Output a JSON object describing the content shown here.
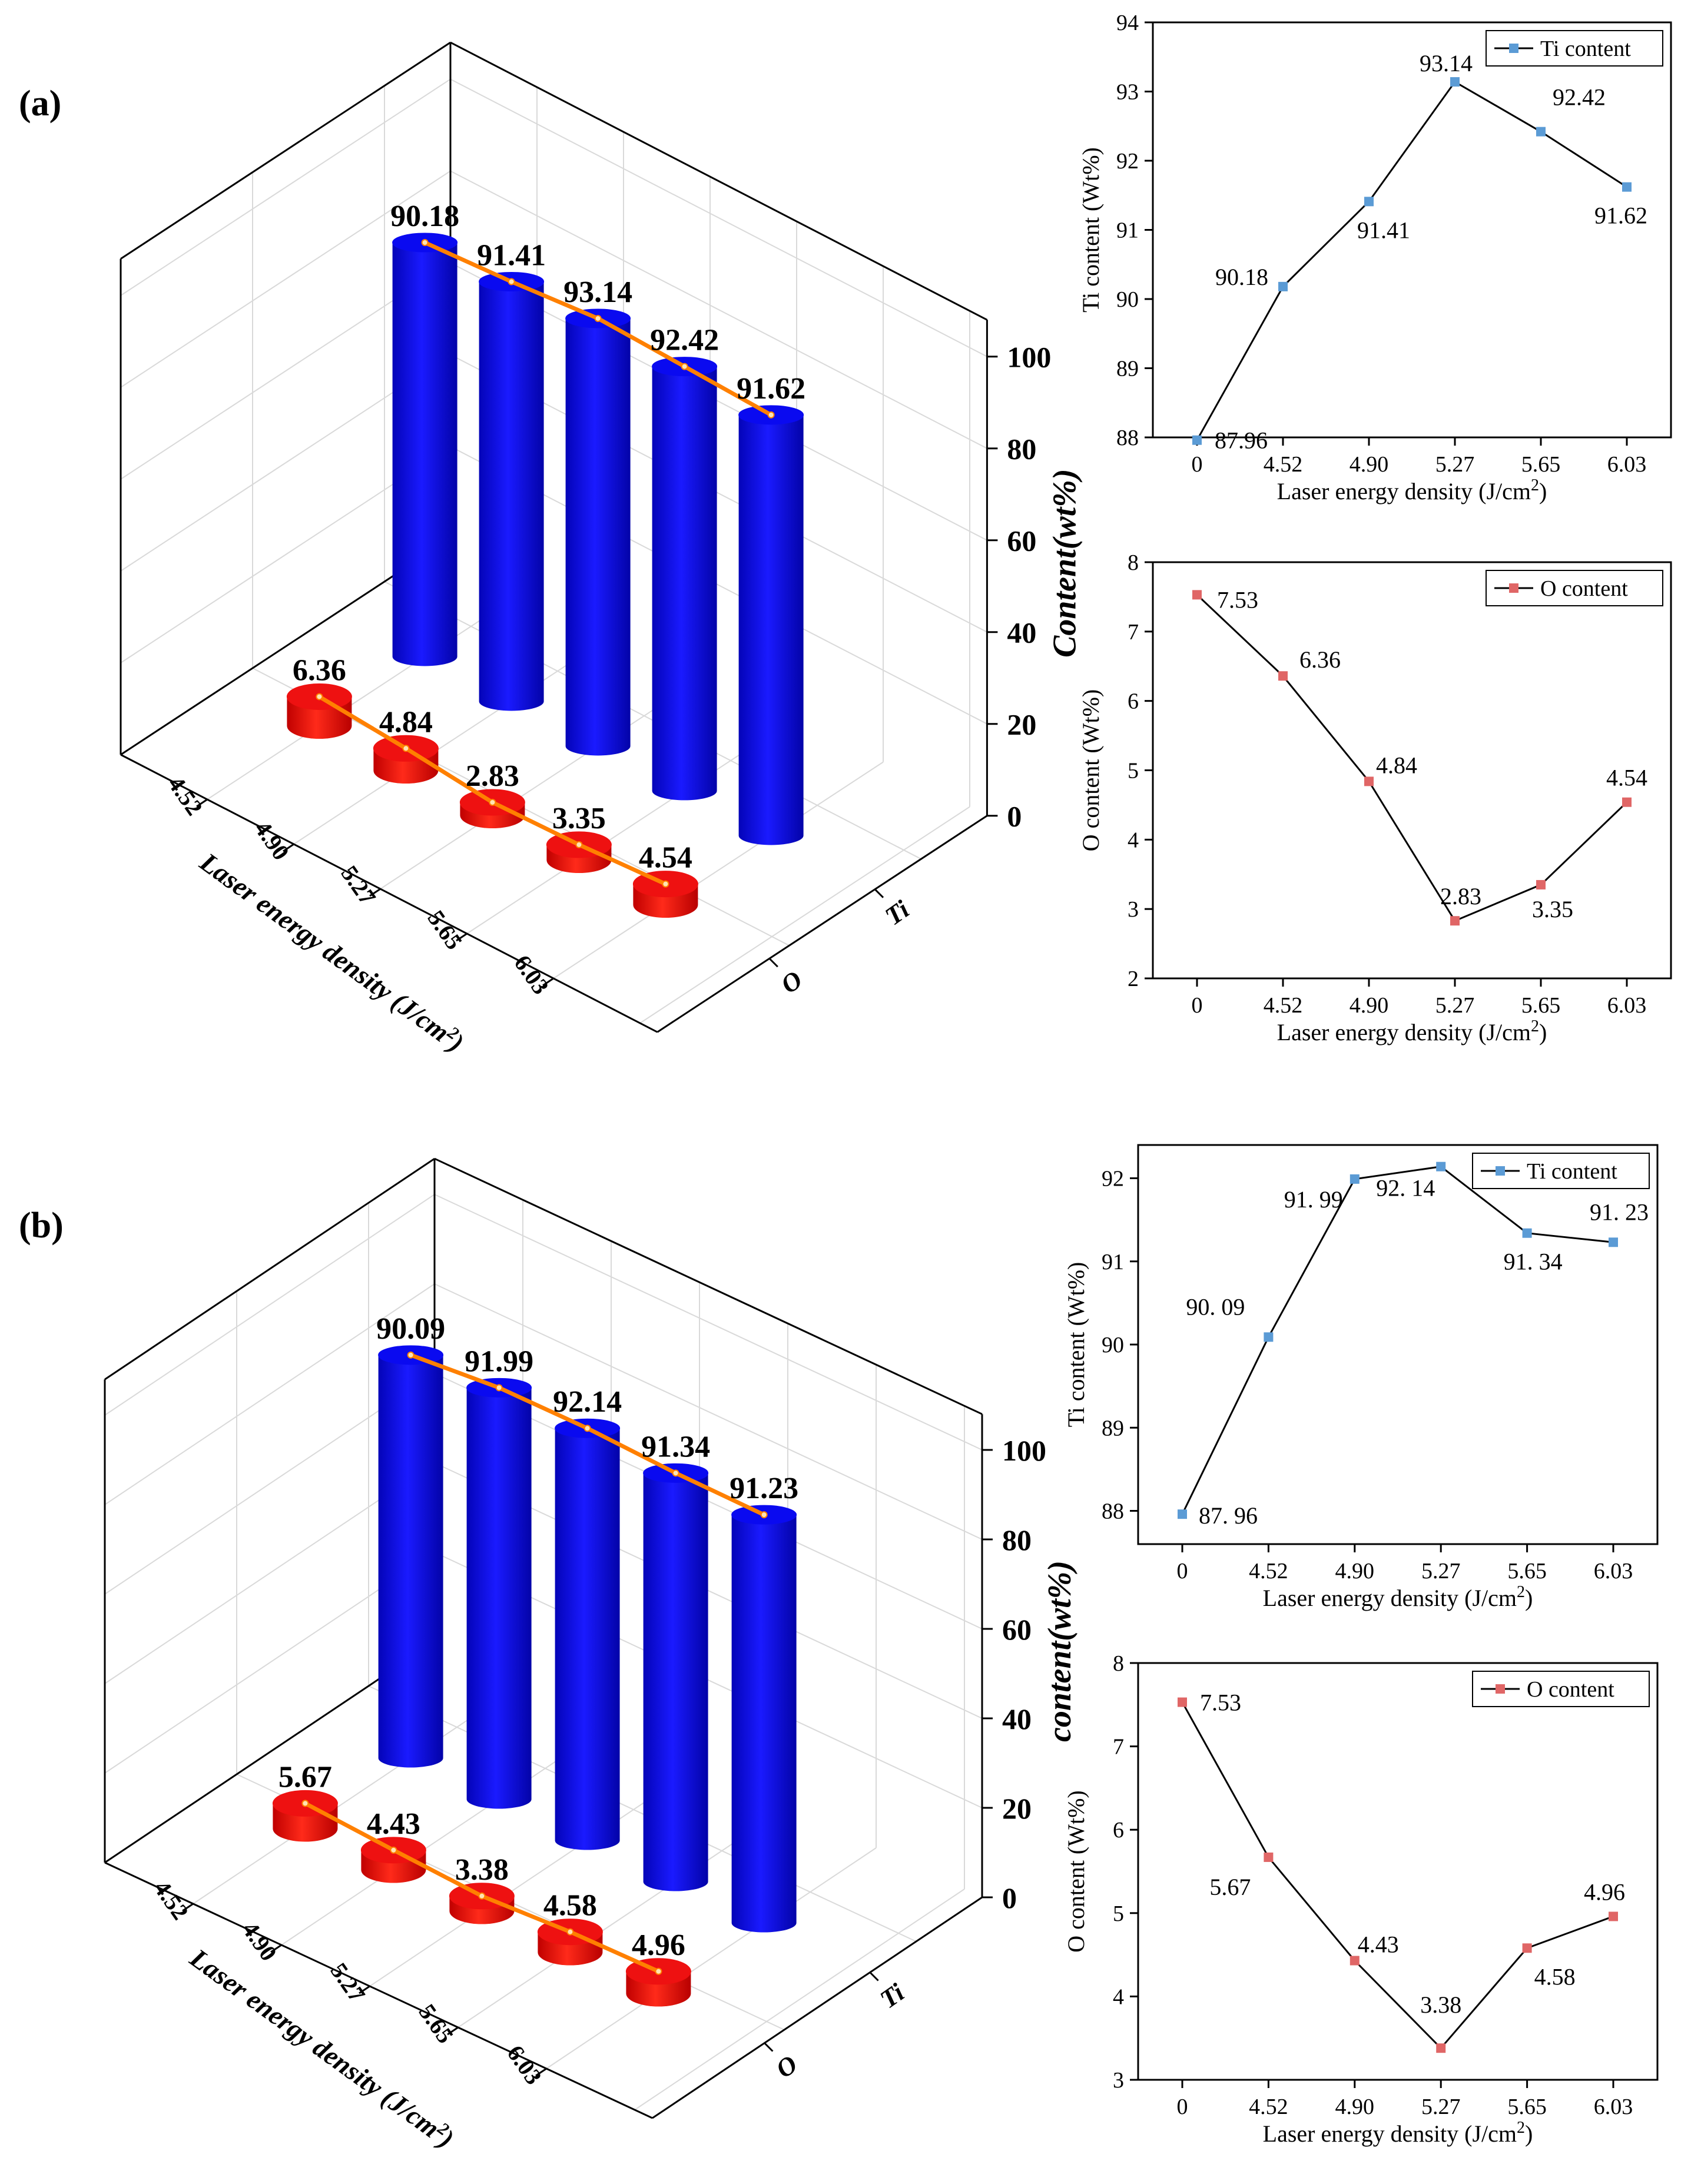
{
  "figure": {
    "panels": [
      {
        "label": "(a)"
      },
      {
        "label": "(b)"
      }
    ]
  },
  "colors": {
    "ti_bar": "#0a0af0",
    "o_bar": "#ee1111",
    "connector": "#ff8000",
    "ti_line_marker": "#5b9bd5",
    "o_line_marker": "#e06666"
  },
  "chart_data": [
    {
      "id": "a-3d",
      "type": "bar",
      "subtype": "3d-cylinder",
      "panel": "(a)",
      "categories": [
        "4.52",
        "4.90",
        "5.27",
        "5.65",
        "6.03"
      ],
      "depth_categories": [
        "Ti",
        "O"
      ],
      "series": [
        {
          "name": "Ti",
          "values": [
            90.18,
            91.41,
            93.14,
            92.42,
            91.62
          ],
          "labels": [
            "90.18",
            "91.41",
            "93.14",
            "92.42",
            "91.62"
          ]
        },
        {
          "name": "O",
          "values": [
            6.36,
            4.84,
            2.83,
            3.35,
            4.54
          ],
          "labels": [
            "6.36",
            "4.84",
            "2.83",
            "3.35",
            "4.54"
          ]
        }
      ],
      "xlabel": "Laser energy density (J/cm²)",
      "zlabel": "Content(wt%)",
      "zticks": [
        "0",
        "20",
        "40",
        "60",
        "80",
        "100"
      ],
      "zlim": [
        0,
        100
      ]
    },
    {
      "id": "a-ti",
      "type": "line",
      "panel": "(a)",
      "x": [
        "0",
        "4.52",
        "4.90",
        "5.27",
        "5.65",
        "6.03"
      ],
      "series": [
        {
          "name": "Ti content",
          "values": [
            87.96,
            90.18,
            91.41,
            93.14,
            92.42,
            91.62
          ]
        }
      ],
      "point_labels": [
        "87.96",
        "90.18",
        "91.41",
        "93.14",
        "92.42",
        "91.62"
      ],
      "xlabel": "Laser energy density (J/cm²)",
      "ylabel": "Ti content (Wt%)",
      "ylim": [
        88,
        94
      ],
      "yticks": [
        "88",
        "89",
        "90",
        "91",
        "92",
        "93",
        "94"
      ],
      "legend": "top-right"
    },
    {
      "id": "a-o",
      "type": "line",
      "panel": "(a)",
      "x": [
        "0",
        "4.52",
        "4.90",
        "5.27",
        "5.65",
        "6.03"
      ],
      "series": [
        {
          "name": "O content",
          "values": [
            7.53,
            6.36,
            4.84,
            2.83,
            3.35,
            4.54
          ]
        }
      ],
      "point_labels": [
        "7.53",
        "6.36",
        "4.84",
        "2.83",
        "3.35",
        "4.54"
      ],
      "xlabel": "Laser energy density (J/cm²)",
      "ylabel": "O content (Wt%)",
      "ylim": [
        2,
        8
      ],
      "yticks": [
        "2",
        "3",
        "4",
        "5",
        "6",
        "7",
        "8"
      ],
      "legend": "top-right"
    },
    {
      "id": "b-3d",
      "type": "bar",
      "subtype": "3d-cylinder",
      "panel": "(b)",
      "categories": [
        "4.52",
        "4.90",
        "5.27",
        "5.65",
        "6.03"
      ],
      "depth_categories": [
        "Ti",
        "O"
      ],
      "series": [
        {
          "name": "Ti",
          "values": [
            90.09,
            91.99,
            92.14,
            91.34,
            91.23
          ],
          "labels": [
            "90.09",
            "91.99",
            "92.14",
            "91.34",
            "91.23"
          ]
        },
        {
          "name": "O",
          "values": [
            5.67,
            4.43,
            3.38,
            4.58,
            4.96
          ],
          "labels": [
            "5.67",
            "4.43",
            "3.38",
            "4.58",
            "4.96"
          ]
        }
      ],
      "xlabel": "Laser energy density (J/cm²)",
      "zlabel": "content(wt%)",
      "zticks": [
        "0",
        "20",
        "40",
        "60",
        "80",
        "100"
      ],
      "zlim": [
        0,
        100
      ]
    },
    {
      "id": "b-ti",
      "type": "line",
      "panel": "(b)",
      "x": [
        "0",
        "4.52",
        "4.90",
        "5.27",
        "5.65",
        "6.03"
      ],
      "series": [
        {
          "name": "Ti content",
          "values": [
            87.96,
            90.09,
            91.99,
            92.14,
            91.34,
            91.23
          ]
        }
      ],
      "point_labels": [
        "87. 96",
        "90. 09",
        "91. 99",
        "92. 14",
        "91. 34",
        "91. 23"
      ],
      "xlabel": "Laser energy density (J/cm²)",
      "ylabel": "Ti content (Wt%)",
      "ylim": [
        87.6,
        92.4
      ],
      "yticks": [
        "88",
        "89",
        "90",
        "91",
        "92"
      ],
      "legend": "top-right"
    },
    {
      "id": "b-o",
      "type": "line",
      "panel": "(b)",
      "x": [
        "0",
        "4.52",
        "4.90",
        "5.27",
        "5.65",
        "6.03"
      ],
      "series": [
        {
          "name": "O content",
          "values": [
            7.53,
            5.67,
            4.43,
            3.38,
            4.58,
            4.96
          ]
        }
      ],
      "point_labels": [
        "7.53",
        "5.67",
        "4.43",
        "3.38",
        "4.58",
        "4.96"
      ],
      "xlabel": "Laser energy density (J/cm²)",
      "ylabel": "O content (Wt%)",
      "ylim": [
        3,
        8
      ],
      "yticks": [
        "3",
        "4",
        "5",
        "6",
        "7",
        "8"
      ],
      "legend": "top-right"
    }
  ]
}
